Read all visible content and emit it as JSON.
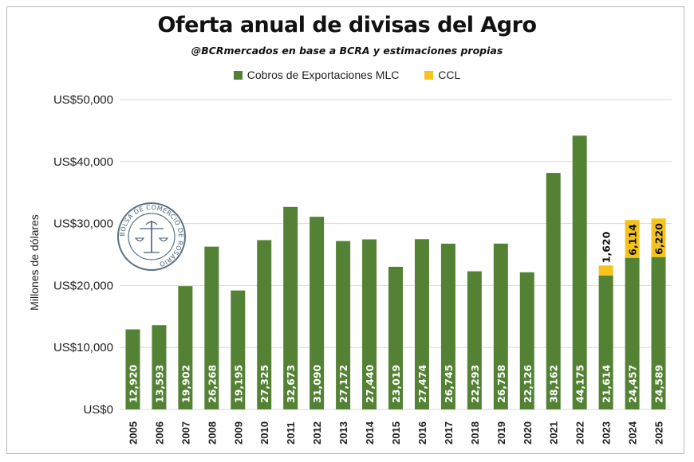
{
  "colors": {
    "mlc": "#548235",
    "ccl": "#f5c31b",
    "grid": "#d9d9d9"
  },
  "seal": {
    "text": "BOLSA DE COMERCIO DE ROSARIO"
  },
  "chart_data": {
    "type": "bar",
    "stacked": true,
    "title": "Oferta anual de divisas del Agro",
    "subtitle": "@BCRmercados en base a BCRA y estimaciones propias",
    "ylabel": "Millones de dólares",
    "xlabel": "",
    "ylim": [
      0,
      50000
    ],
    "yticks": [
      0,
      10000,
      20000,
      30000,
      40000,
      50000
    ],
    "ytick_labels": [
      "US$0",
      "US$10,000",
      "US$20,000",
      "US$30,000",
      "US$40,000",
      "US$50,000"
    ],
    "grid": true,
    "legend_position": "top",
    "categories": [
      "2005",
      "2006",
      "2007",
      "2008",
      "2009",
      "2010",
      "2011",
      "2012",
      "2013",
      "2014",
      "2015",
      "2016",
      "2017",
      "2018",
      "2019",
      "2020",
      "2021",
      "2022",
      "2023",
      "2024",
      "2025"
    ],
    "series": [
      {
        "name": "Cobros de Exportaciones MLC",
        "values": [
          12920,
          13593,
          19902,
          26268,
          19195,
          27325,
          32673,
          31090,
          27172,
          27440,
          23019,
          27474,
          26745,
          22293,
          26758,
          22126,
          38162,
          44175,
          21614,
          24457,
          24589
        ],
        "labels": [
          "12,920",
          "13,593",
          "19,902",
          "26,268",
          "19,195",
          "27,325",
          "32,673",
          "31,090",
          "27,172",
          "27,440",
          "23,019",
          "27,474",
          "26,745",
          "22,293",
          "26,758",
          "22,126",
          "38,162",
          "44,175",
          "21,614",
          "24,457",
          "24,589"
        ]
      },
      {
        "name": "CCL",
        "values": [
          0,
          0,
          0,
          0,
          0,
          0,
          0,
          0,
          0,
          0,
          0,
          0,
          0,
          0,
          0,
          0,
          0,
          0,
          1620,
          6114,
          6220
        ],
        "labels": [
          "",
          "",
          "",
          "",
          "",
          "",
          "",
          "",
          "",
          "",
          "",
          "",
          "",
          "",
          "",
          "",
          "",
          "",
          "1,620",
          "6,114",
          "6,220"
        ]
      }
    ]
  }
}
